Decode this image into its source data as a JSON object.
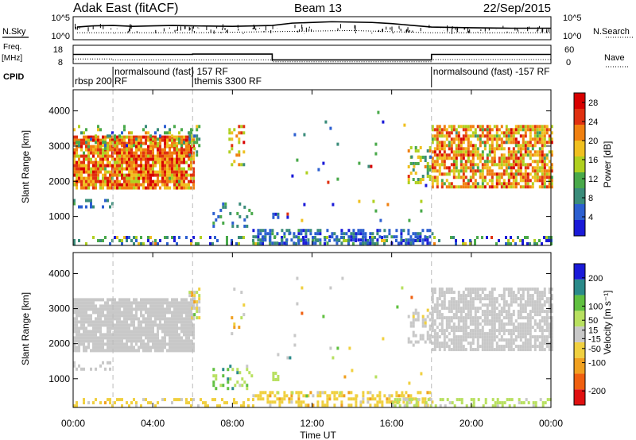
{
  "header": {
    "station": "Adak East (fitACF)",
    "beam": "Beam 13",
    "date": "22/Sep/2015"
  },
  "strip_labels": {
    "nsky": "N.Sky",
    "freq_line1": "Freq.",
    "freq_line2": "[MHz]",
    "cpid": "CPID",
    "nsearch": "N.Search",
    "nave": "Nave",
    "nsky_ticks": [
      "10^5",
      "10^0"
    ],
    "nsearch_ticks": [
      "10^5",
      "10^0"
    ],
    "freq_ticks": [
      "18",
      "8"
    ],
    "nave_ticks": [
      "60",
      "0"
    ]
  },
  "cpid_segments": [
    {
      "start_h": 0.0,
      "label": "rbsp 200 RF",
      "row": 2
    },
    {
      "start_h": 2.0,
      "label": "normalsound (fast) 157 RF",
      "row": 1
    },
    {
      "start_h": 6.0,
      "label": "themis 3300 RF",
      "row": 2
    },
    {
      "start_h": 18.0,
      "label": "normalsound (fast) -157 RF",
      "row": 1
    }
  ],
  "chart_data": [
    {
      "type": "line",
      "name": "noise-and-operating-strips",
      "x_range_hours": [
        0,
        24
      ],
      "series": [
        {
          "name": "N.Sky",
          "points": [
            [
              0.2,
              0.55
            ],
            [
              1,
              0.6
            ],
            [
              2,
              0.62
            ],
            [
              3,
              0.58
            ],
            [
              4,
              0.6
            ],
            [
              5,
              0.62
            ],
            [
              6,
              0.6
            ],
            [
              8,
              0.58
            ],
            [
              10,
              0.62
            ],
            [
              11,
              0.72
            ],
            [
              13,
              0.78
            ],
            [
              15,
              0.75
            ],
            [
              16,
              0.7
            ],
            [
              18,
              0.55
            ],
            [
              20,
              0.52
            ],
            [
              22,
              0.5
            ],
            [
              24,
              0.5
            ]
          ]
        },
        {
          "name": "N.Search",
          "points": [
            [
              0.2,
              0.3
            ],
            [
              6,
              0.3
            ],
            [
              10,
              0.35
            ],
            [
              14,
              0.4
            ],
            [
              18,
              0.3
            ],
            [
              24,
              0.3
            ]
          ]
        },
        {
          "name": "Freq",
          "points": [
            [
              0,
              13
            ],
            [
              0.2,
              13
            ],
            [
              6,
              13.2
            ],
            [
              10,
              10
            ],
            [
              18,
              13
            ],
            [
              24,
              13
            ]
          ]
        },
        {
          "name": "Nave",
          "points": [
            [
              0,
              0.25
            ],
            [
              2,
              0.2
            ],
            [
              10,
              0.1
            ],
            [
              18,
              0.22
            ],
            [
              24,
              0.22
            ]
          ]
        }
      ]
    },
    {
      "type": "heatmap",
      "name": "power",
      "xlabel": "Time UT",
      "ylabel": "Slant Range [km]",
      "x_ticks": [
        "00:00",
        "04:00",
        "08:00",
        "12:00",
        "16:00",
        "20:00",
        "00:00"
      ],
      "y_ticks": [
        1000,
        2000,
        3000,
        4000
      ],
      "y_range_km": [
        180,
        4600
      ],
      "colorbar_label": "Power [dB]",
      "colorbar_ticks": [
        4,
        8,
        12,
        16,
        20,
        24,
        28
      ],
      "color_range": [
        0,
        30
      ],
      "colors": [
        "#1a1ad8",
        "#2c5fd0",
        "#3a8c7a",
        "#49a94a",
        "#b0d020",
        "#f0c020",
        "#f08010",
        "#e03010",
        "#d80000"
      ],
      "regions": [
        {
          "t0": 0.0,
          "t1": 6.0,
          "r0": 1800,
          "r1": 3300,
          "value": 22,
          "density": 0.88,
          "noise": 7
        },
        {
          "t0": 0.0,
          "t1": 2.0,
          "r0": 1300,
          "r1": 1500,
          "value": 6,
          "density": 0.3,
          "noise": 3
        },
        {
          "t0": 0.0,
          "t1": 6.0,
          "r0": 2900,
          "r1": 3600,
          "value": 13,
          "density": 0.15,
          "noise": 8
        },
        {
          "t0": 5.8,
          "t1": 6.3,
          "r0": 2700,
          "r1": 3600,
          "value": 12,
          "density": 0.4,
          "noise": 6
        },
        {
          "t0": 7.0,
          "t1": 9.0,
          "r0": 700,
          "r1": 1400,
          "value": 8,
          "density": 0.22,
          "noise": 5
        },
        {
          "t0": 7.8,
          "t1": 8.6,
          "r0": 2300,
          "r1": 3600,
          "value": 18,
          "density": 0.2,
          "noise": 8
        },
        {
          "t0": 10.0,
          "t1": 10.3,
          "r0": 1000,
          "r1": 1200,
          "value": 6,
          "density": 0.5,
          "noise": 3
        },
        {
          "t0": 0.0,
          "t1": 24.0,
          "r0": 200,
          "r1": 450,
          "value": 8,
          "density": 0.3,
          "noise": 10
        },
        {
          "t0": 9.0,
          "t1": 18.0,
          "r0": 250,
          "r1": 650,
          "value": 6,
          "density": 0.4,
          "noise": 4
        },
        {
          "t0": 16.8,
          "t1": 17.9,
          "r0": 2000,
          "r1": 3000,
          "value": 14,
          "density": 0.35,
          "noise": 8
        },
        {
          "t0": 18.0,
          "t1": 24.0,
          "r0": 1800,
          "r1": 3600,
          "value": 20,
          "density": 0.72,
          "noise": 8
        },
        {
          "t0": 10.0,
          "t1": 18.0,
          "r0": 500,
          "r1": 4000,
          "value": 10,
          "density": 0.012,
          "noise": 12
        }
      ]
    },
    {
      "type": "heatmap",
      "name": "velocity",
      "xlabel": "Time UT",
      "ylabel": "Slant Range [km]",
      "x_ticks": [
        "00:00",
        "04:00",
        "08:00",
        "12:00",
        "16:00",
        "20:00",
        "00:00"
      ],
      "y_ticks": [
        1000,
        2000,
        3000,
        4000
      ],
      "y_range_km": [
        180,
        4600
      ],
      "colorbar_label": "Velocity [m s⁻¹]",
      "colorbar_ticks": [
        200,
        100,
        50,
        15,
        -15,
        -50,
        -100,
        -200
      ],
      "color_range": [
        -250,
        250
      ],
      "colors": [
        "#e01010",
        "#f06010",
        "#f0a020",
        "#f0d040",
        "#c8c8c8",
        "#b8e060",
        "#60c040",
        "#2a8a8a",
        "#1a1ad8"
      ],
      "regions": [
        {
          "t0": 0.0,
          "t1": 6.0,
          "r0": 1800,
          "r1": 3300,
          "value": 0,
          "density": 0.88,
          "noise": 12
        },
        {
          "t0": 0.0,
          "t1": 2.0,
          "r0": 1300,
          "r1": 1500,
          "value": 0,
          "density": 0.3,
          "noise": 20
        },
        {
          "t0": 5.8,
          "t1": 6.3,
          "r0": 2700,
          "r1": 3600,
          "value": -20,
          "density": 0.4,
          "noise": 80
        },
        {
          "t0": 7.0,
          "t1": 9.0,
          "r0": 700,
          "r1": 1400,
          "value": 90,
          "density": 0.22,
          "noise": 80
        },
        {
          "t0": 7.8,
          "t1": 8.6,
          "r0": 2300,
          "r1": 3600,
          "value": -40,
          "density": 0.2,
          "noise": 120
        },
        {
          "t0": 10.0,
          "t1": 10.3,
          "r0": 1000,
          "r1": 1200,
          "value": 60,
          "density": 0.5,
          "noise": 20
        },
        {
          "t0": 0.0,
          "t1": 9.0,
          "r0": 200,
          "r1": 450,
          "value": -40,
          "density": 0.25,
          "noise": 30
        },
        {
          "t0": 9.0,
          "t1": 18.0,
          "r0": 200,
          "r1": 650,
          "value": -60,
          "density": 0.45,
          "noise": 40
        },
        {
          "t0": 16.0,
          "t1": 24.0,
          "r0": 200,
          "r1": 450,
          "value": 40,
          "density": 0.35,
          "noise": 30
        },
        {
          "t0": 16.8,
          "t1": 17.9,
          "r0": 2000,
          "r1": 3000,
          "value": 0,
          "density": 0.35,
          "noise": 30
        },
        {
          "t0": 18.0,
          "t1": 24.0,
          "r0": 1800,
          "r1": 3600,
          "value": 0,
          "density": 0.72,
          "noise": 12
        },
        {
          "t0": 10.0,
          "t1": 18.0,
          "r0": 500,
          "r1": 4000,
          "value": 0,
          "density": 0.012,
          "noise": 120
        }
      ]
    }
  ]
}
